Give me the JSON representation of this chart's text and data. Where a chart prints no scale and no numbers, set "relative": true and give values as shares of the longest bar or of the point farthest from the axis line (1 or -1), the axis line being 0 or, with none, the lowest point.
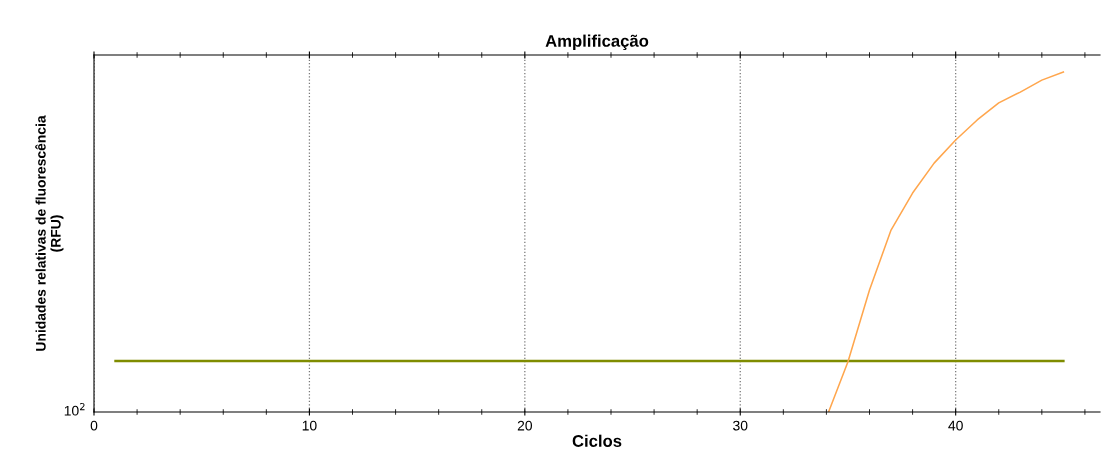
{
  "chart_data": {
    "type": "line",
    "title": "Amplificação",
    "xlabel": "Ciclos",
    "ylabel": "Unidades relativas de fluorescência\n(RFU)",
    "relative": true,
    "xlim": [
      0,
      46.7
    ],
    "xticks": [
      0,
      10,
      20,
      30,
      40
    ],
    "grid": "x",
    "marker": "none",
    "line_style": "solid",
    "annotations": [
      "10$^{2}$"
    ],
    "series": [
      {
        "color": "#7f8c00",
        "x": [
          1,
          45
        ],
        "values": [
          0.15,
          0.15
        ]
      },
      {
        "color": "#ffa64d",
        "x": [
          34.1,
          35,
          36,
          37,
          38,
          39,
          40,
          41,
          42,
          43,
          44,
          45
        ],
        "values": [
          0,
          0.148,
          0.359,
          0.535,
          0.644,
          0.732,
          0.8,
          0.859,
          0.909,
          0.941,
          0.976,
          1
        ]
      }
    ]
  }
}
